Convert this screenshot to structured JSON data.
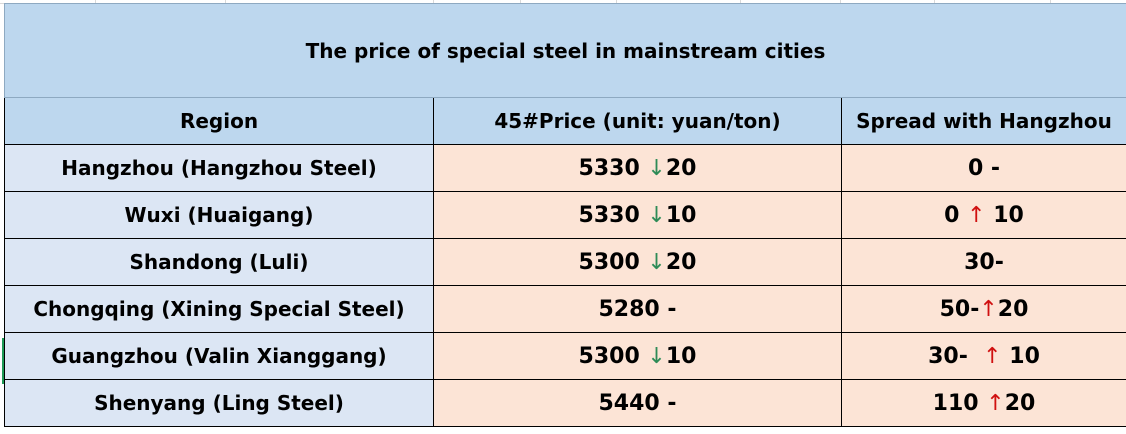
{
  "table": {
    "title": "The price of special steel in mainstream cities",
    "headers": {
      "region": "Region",
      "price": "45#Price (unit: yuan/ton)",
      "spread": "Spread with Hangzhou"
    },
    "rows": [
      {
        "region": "Hangzhou (Hangzhou Steel)",
        "price": "5330",
        "price_arrow": "↓",
        "price_change": "20",
        "spread": "0 -",
        "spread_arrow": "",
        "spread_change": ""
      },
      {
        "region": "Wuxi (Huaigang)",
        "price": "5330",
        "price_arrow": "↓",
        "price_change": "10",
        "spread": "0 ",
        "spread_arrow": "↑",
        "spread_change": " 10"
      },
      {
        "region": "Shandong (Luli)",
        "price": "5300",
        "price_arrow": "↓",
        "price_change": "20",
        "spread": "30-",
        "spread_arrow": "",
        "spread_change": ""
      },
      {
        "region": "Chongqing (Xining Special Steel)",
        "price": "5280 -",
        "price_arrow": "",
        "price_change": "",
        "spread": "50-",
        "spread_arrow": "↑",
        "spread_change": "20"
      },
      {
        "region": "Guangzhou (Valin Xianggang)",
        "price": "5300",
        "price_arrow": "↓",
        "price_change": "10",
        "spread": "30-  ",
        "spread_arrow": "↑",
        "spread_change": " 10"
      },
      {
        "region": "Shenyang (Ling Steel)",
        "price": "5440 -",
        "price_arrow": "",
        "price_change": "",
        "spread": "110 ",
        "spread_arrow": "↑",
        "spread_change": "20"
      }
    ]
  },
  "colors": {
    "header_bg": "#bdd7ee",
    "region_bg": "#dce6f4",
    "value_bg": "#fce4d6",
    "down_arrow": "#2e8b57",
    "up_arrow": "#d01010"
  }
}
